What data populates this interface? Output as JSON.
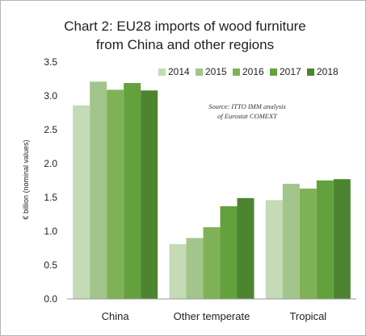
{
  "chart_data": {
    "type": "bar",
    "title_lines": [
      "Chart 2: EU28 imports of wood furniture",
      "from China and other regions"
    ],
    "ylabel": "€ billion (nominal values)",
    "xlabel": "",
    "ylim": [
      0,
      3.5
    ],
    "yticks": [
      "0.0",
      "0.5",
      "1.0",
      "1.5",
      "2.0",
      "2.5",
      "3.0",
      "3.5"
    ],
    "categories": [
      "China",
      "Other temperate",
      "Tropical"
    ],
    "series": [
      {
        "name": "2014",
        "color": "#c4dbb5",
        "values": [
          2.86,
          0.81,
          1.46
        ]
      },
      {
        "name": "2015",
        "color": "#a2c58b",
        "values": [
          3.21,
          0.9,
          1.7
        ]
      },
      {
        "name": "2016",
        "color": "#7fb257",
        "values": [
          3.09,
          1.06,
          1.63
        ]
      },
      {
        "name": "2017",
        "color": "#63a13d",
        "values": [
          3.19,
          1.37,
          1.75
        ]
      },
      {
        "name": "2018",
        "color": "#4c8430",
        "values": [
          3.08,
          1.49,
          1.77
        ]
      }
    ],
    "source_lines": [
      "Source: ITTO IMM analysis",
      "of Eurostat COMEXT"
    ],
    "grid": false,
    "legend_position": "top-right"
  }
}
